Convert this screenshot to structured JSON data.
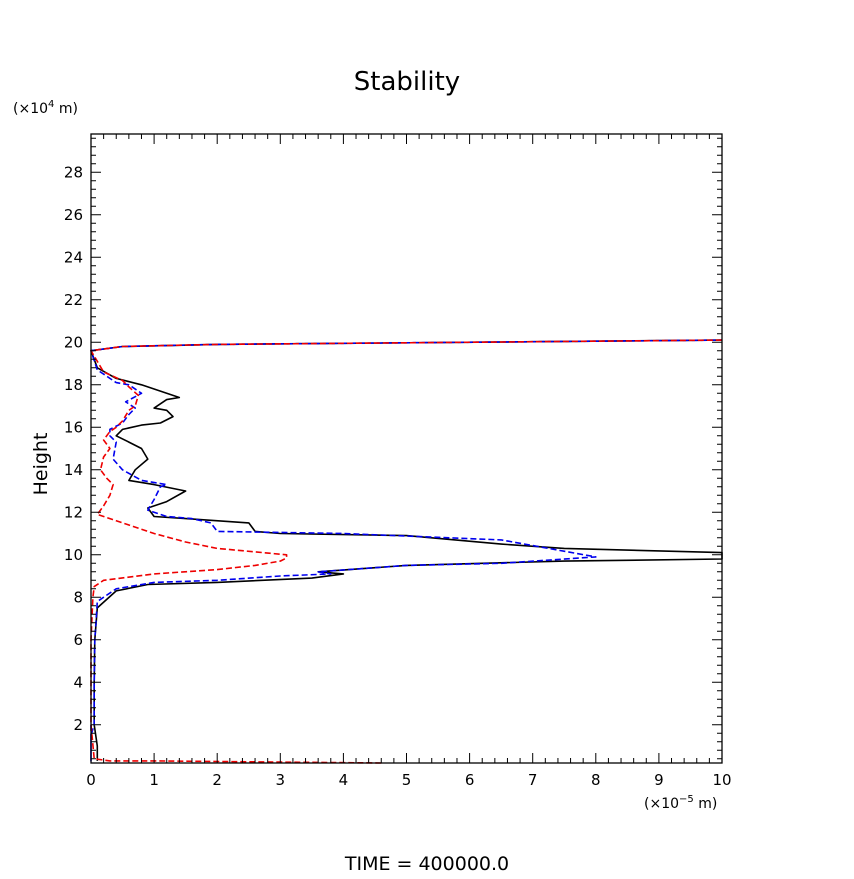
{
  "chart_data": {
    "type": "line",
    "title": "Stability",
    "xlabel": "",
    "ylabel": "Height",
    "x_unit_label": [
      "(×10",
      "−5",
      " m)"
    ],
    "y_unit_label": [
      "(×10",
      "4",
      " m)"
    ],
    "xlim": [
      0,
      10
    ],
    "ylim": [
      0.2,
      29.8
    ],
    "x_ticks": [
      "0",
      "1",
      "2",
      "3",
      "4",
      "5",
      "6",
      "7",
      "8",
      "9",
      "10"
    ],
    "y_ticks": [
      "2",
      "4",
      "6",
      "8",
      "10",
      "12",
      "14",
      "16",
      "18",
      "20",
      "22",
      "24",
      "26",
      "28"
    ],
    "grid": false,
    "legend": "none",
    "footer": "TIME  =  400000.0",
    "series": [
      {
        "color": "#000000",
        "dash": "solid",
        "x": [
          0.1,
          0.1,
          0.05,
          0.05,
          0.06,
          0.1,
          0.4,
          0.9,
          2.0,
          3.5,
          4.0,
          3.6,
          5.0,
          7.5,
          10.0,
          10.0,
          7.5,
          6.5,
          5.0,
          3.0,
          2.6,
          2.5,
          1.5,
          1.0,
          0.9,
          1.2,
          1.5,
          1.0,
          0.6,
          0.7,
          0.9,
          0.8,
          0.6,
          0.4,
          0.5,
          0.8,
          1.1,
          1.3,
          1.2,
          1.0,
          1.2,
          1.4,
          0.8,
          0.4,
          0.1,
          0.0,
          0.5,
          2.0,
          10.0
        ],
        "y": [
          0.3,
          1.0,
          2.0,
          4.0,
          6.0,
          7.5,
          8.3,
          8.6,
          8.7,
          8.9,
          9.1,
          9.2,
          9.5,
          9.7,
          9.8,
          10.1,
          10.3,
          10.5,
          10.9,
          11.0,
          11.1,
          11.5,
          11.7,
          11.8,
          12.2,
          12.5,
          13.0,
          13.3,
          13.5,
          14.0,
          14.5,
          15.0,
          15.3,
          15.6,
          15.9,
          16.1,
          16.2,
          16.5,
          16.8,
          16.9,
          17.3,
          17.4,
          18.0,
          18.3,
          18.8,
          19.6,
          19.8,
          19.9,
          20.1
        ]
      },
      {
        "color": "#0000ee",
        "dash": "dashed",
        "x": [
          0.0,
          0.0,
          0.0,
          0.05,
          0.05,
          0.06,
          0.1,
          0.4,
          1.0,
          2.0,
          3.0,
          3.8,
          3.6,
          5.0,
          6.5,
          8.0,
          6.5,
          4.0,
          2.0,
          1.9,
          1.6,
          1.2,
          0.9,
          1.0,
          1.1,
          1.2,
          0.8,
          0.5,
          0.35,
          0.4,
          0.3,
          0.3,
          0.5,
          0.6,
          0.7,
          0.55,
          0.8,
          0.6,
          0.4,
          0.1,
          0.0,
          0.5,
          2.0,
          10.0
        ],
        "y": [
          2.0,
          0.3,
          1.5,
          2.0,
          4.0,
          6.0,
          7.8,
          8.4,
          8.7,
          8.8,
          9.0,
          9.1,
          9.2,
          9.5,
          9.6,
          9.9,
          10.7,
          11.0,
          11.1,
          11.5,
          11.7,
          11.8,
          12.1,
          12.6,
          13.2,
          13.3,
          13.5,
          14.0,
          14.5,
          15.3,
          15.6,
          15.9,
          16.2,
          16.6,
          16.9,
          17.2,
          17.6,
          18.0,
          18.1,
          18.7,
          19.6,
          19.8,
          19.9,
          20.1
        ]
      },
      {
        "color": "#ee0000",
        "dash": "dashed",
        "x": [
          4.6,
          1.0,
          0.3,
          0.05,
          0.0,
          0.0,
          0.03,
          0.05,
          0.2,
          1.0,
          2.0,
          2.6,
          3.0,
          3.1,
          3.1,
          2.0,
          1.5,
          1.0,
          0.6,
          0.3,
          0.1,
          0.2,
          0.3,
          0.35,
          0.25,
          0.15,
          0.2,
          0.3,
          0.2,
          0.3,
          0.4,
          0.5,
          0.6,
          0.7,
          0.75,
          0.6,
          0.5,
          0.2,
          0.0,
          0.5,
          2.0,
          10.0
        ],
        "y": [
          0.2,
          0.3,
          0.3,
          0.4,
          2.0,
          6.0,
          8.0,
          8.5,
          8.8,
          9.1,
          9.3,
          9.5,
          9.7,
          9.85,
          10.0,
          10.3,
          10.6,
          11.0,
          11.4,
          11.7,
          11.9,
          12.3,
          12.8,
          13.3,
          13.6,
          14.0,
          14.6,
          15.0,
          15.4,
          15.8,
          16.0,
          16.3,
          16.8,
          17.0,
          17.5,
          17.9,
          18.2,
          18.6,
          19.6,
          19.8,
          19.9,
          20.1
        ]
      }
    ]
  }
}
